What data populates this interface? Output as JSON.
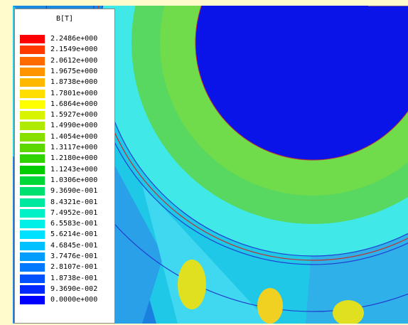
{
  "legend": {
    "title": "B[T]",
    "entries": [
      {
        "label": "2.2486e+000",
        "color": "#ff0000"
      },
      {
        "label": "2.1549e+000",
        "color": "#ff3a00"
      },
      {
        "label": "2.0612e+000",
        "color": "#ff6a00"
      },
      {
        "label": "1.9675e+000",
        "color": "#ff9400"
      },
      {
        "label": "1.8738e+000",
        "color": "#ffb800"
      },
      {
        "label": "1.7801e+000",
        "color": "#ffde00"
      },
      {
        "label": "1.6864e+000",
        "color": "#ffff00"
      },
      {
        "label": "1.5927e+000",
        "color": "#d8f400"
      },
      {
        "label": "1.4990e+000",
        "color": "#b0ea00"
      },
      {
        "label": "1.4054e+000",
        "color": "#88e000"
      },
      {
        "label": "1.3117e+000",
        "color": "#5cd800"
      },
      {
        "label": "1.2180e+000",
        "color": "#30d200"
      },
      {
        "label": "1.1243e+000",
        "color": "#00cc00"
      },
      {
        "label": "1.0306e+000",
        "color": "#00d838"
      },
      {
        "label": "9.3690e-001",
        "color": "#00e070"
      },
      {
        "label": "8.4321e-001",
        "color": "#00e8a0"
      },
      {
        "label": "7.4952e-001",
        "color": "#00f0c8"
      },
      {
        "label": "6.5583e-001",
        "color": "#00f0e8"
      },
      {
        "label": "5.6214e-001",
        "color": "#00e0ff"
      },
      {
        "label": "4.6845e-001",
        "color": "#00c0ff"
      },
      {
        "label": "3.7476e-001",
        "color": "#009cff"
      },
      {
        "label": "2.8107e-001",
        "color": "#0078ff"
      },
      {
        "label": "1.8738e-001",
        "color": "#0050ff"
      },
      {
        "label": "9.3690e-002",
        "color": "#0028ff"
      },
      {
        "label": "0.0000e+000",
        "color": "#0000ff"
      }
    ]
  }
}
